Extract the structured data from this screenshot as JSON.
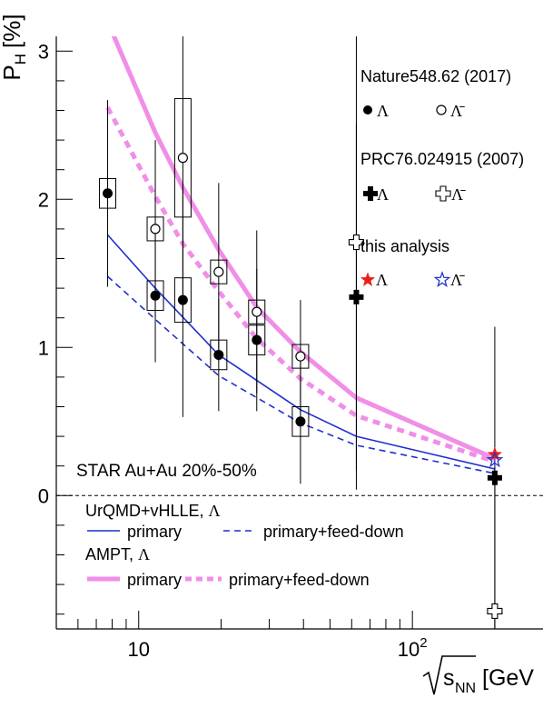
{
  "chart_data": {
    "type": "scatter",
    "title": "",
    "ylabel": "P",
    "ylabel_sub": "H",
    "ylabel_unit": "[%]",
    "xlabel": "s",
    "xlabel_sub": "NN",
    "xlabel_unit": "[GeV",
    "x_scale": "log",
    "xlim": [
      5,
      300
    ],
    "ylim": [
      -0.9,
      3.1
    ],
    "y_ticks": [
      0,
      1,
      2,
      3
    ],
    "y_tick_labels": [
      "0",
      "1",
      "2",
      "3"
    ],
    "x_tick_labels": [
      {
        "value": 10,
        "base": "10",
        "exp": ""
      },
      {
        "value": 100,
        "base": "10",
        "exp": "2"
      }
    ],
    "zero_line": "dashed",
    "system_label": "STAR Au+Au 20%-50%",
    "series": [
      {
        "name": "Λ",
        "group": "Nature548.62 (2017)",
        "marker": "filled-circle",
        "color": "#000000",
        "x": [
          7.7,
          11.5,
          14.5,
          19.6,
          27,
          39
        ],
        "y": [
          2.04,
          1.35,
          1.32,
          0.95,
          1.05,
          0.5
        ],
        "yerr": [
          0.63,
          0.45,
          0.79,
          0.38,
          0.48,
          0.42
        ],
        "sys": [
          0.1,
          0.1,
          0.15,
          0.1,
          0.1,
          0.1
        ]
      },
      {
        "name": "Λ̄",
        "group": "Nature548.62 (2017)",
        "marker": "open-circle",
        "color": "#000000",
        "x": [
          11.5,
          14.5,
          19.6,
          27,
          39
        ],
        "y": [
          1.8,
          2.28,
          1.51,
          1.24,
          0.94
        ],
        "yerr": [
          0.6,
          1.07,
          0.6,
          0.55,
          0.38
        ],
        "sys": [
          0.08,
          0.4,
          0.08,
          0.08,
          0.08
        ]
      },
      {
        "name": "Λ",
        "group": "PRC76.024915 (2007)",
        "marker": "filled-cross",
        "color": "#000000",
        "x": [
          62.4,
          200
        ],
        "y": [
          1.34,
          0.12
        ],
        "yerr": [
          1.17,
          1.02
        ]
      },
      {
        "name": "Λ̄",
        "group": "PRC76.024915 (2007)",
        "marker": "open-cross",
        "color": "#000000",
        "x": [
          62.4,
          200
        ],
        "y": [
          1.71,
          -0.78
        ],
        "yerr": [
          1.67,
          1.02
        ]
      },
      {
        "name": "Λ",
        "group": "this analysis",
        "marker": "filled-star",
        "color": "#e8201a",
        "x": [
          200
        ],
        "y": [
          0.277
        ],
        "yerr": [
          0.04
        ]
      },
      {
        "name": "Λ̄",
        "group": "this analysis",
        "marker": "open-star",
        "color": "#2433c9",
        "x": [
          200
        ],
        "y": [
          0.24
        ],
        "yerr": [
          0.045
        ]
      }
    ],
    "models": [
      {
        "name": "primary",
        "group": "UrQMD+vHLLE, Λ",
        "color": "#1f2fcf",
        "style": "solid",
        "width": "thin",
        "x": [
          7.7,
          11.5,
          19.6,
          39,
          62.4,
          200
        ],
        "y": [
          1.76,
          1.4,
          0.95,
          0.58,
          0.4,
          0.18
        ]
      },
      {
        "name": "primary+feed-down",
        "group": "UrQMD+vHLLE, Λ",
        "color": "#1f2fcf",
        "style": "dashed",
        "width": "thin",
        "x": [
          7.7,
          11.5,
          19.6,
          39,
          62.4,
          200
        ],
        "y": [
          1.48,
          1.19,
          0.81,
          0.49,
          0.34,
          0.15
        ]
      },
      {
        "name": "primary",
        "group": "AMPT, Λ",
        "color": "#f08ee8",
        "style": "solid",
        "width": "thick",
        "x": [
          7.7,
          11.5,
          14.5,
          19.6,
          27,
          39,
          62.4,
          200
        ],
        "y": [
          3.2,
          2.45,
          2.08,
          1.66,
          1.27,
          0.97,
          0.66,
          0.25
        ]
      },
      {
        "name": "primary+feed-down",
        "group": "AMPT, Λ",
        "color": "#f08ee8",
        "style": "dashed",
        "width": "thick",
        "x": [
          7.7,
          11.5,
          14.5,
          19.6,
          27,
          39,
          62.4,
          200
        ],
        "y": [
          2.62,
          2.02,
          1.7,
          1.38,
          1.06,
          0.79,
          0.54,
          0.23
        ]
      }
    ],
    "legend": {
      "placement": "top-right",
      "groups": [
        {
          "title": "Nature548.62 (2017)",
          "items": [
            "Λ",
            "Λ̄"
          ]
        },
        {
          "title": "PRC76.024915 (2007)",
          "items": [
            "Λ",
            "Λ̄"
          ]
        },
        {
          "title": "this analysis",
          "items": [
            "Λ",
            "Λ̄"
          ]
        }
      ]
    },
    "model_legend": {
      "placement": "bottom-left",
      "groups": [
        {
          "title_text": "UrQMD+vHLLE,",
          "title_symbol": "Λ",
          "items": [
            "primary",
            "primary+feed-down"
          ]
        },
        {
          "title_text": "AMPT,",
          "title_symbol": "Λ",
          "items": [
            "primary",
            "primary+feed-down"
          ]
        }
      ]
    }
  }
}
